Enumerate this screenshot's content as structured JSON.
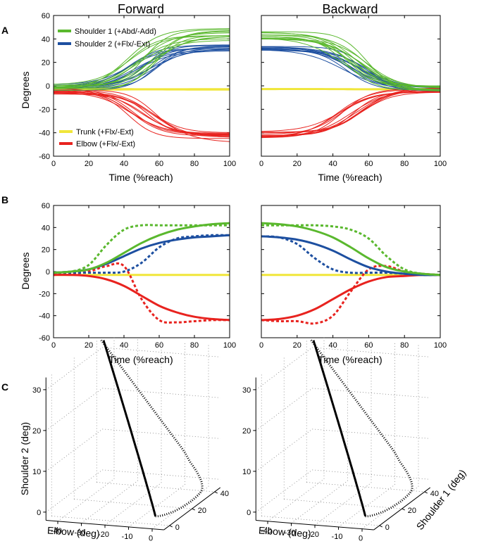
{
  "colors": {
    "shoulder1": "#5ab82e",
    "shoulder2": "#1d4fa0",
    "trunk": "#f0e63a",
    "elbow": "#e8231f",
    "black": "#000000",
    "grid": "#808080"
  },
  "column_titles": [
    "Forward",
    "Backward"
  ],
  "panel_labels": [
    "A",
    "B",
    "C"
  ],
  "chart_data": [
    {
      "id": "panel-A",
      "type": "line",
      "subplots": [
        "Forward",
        "Backward"
      ],
      "xlabel": "Time (%reach)",
      "ylabel": "Degrees",
      "xlim": [
        0,
        100
      ],
      "ylim": [
        -60,
        60
      ],
      "xticks": [
        0,
        20,
        40,
        60,
        80,
        100
      ],
      "yticks": [
        -60,
        -40,
        -20,
        0,
        20,
        40,
        60
      ],
      "trials_per_series": 12,
      "legend": [
        {
          "key": "shoulder1",
          "label": "Shoulder 1 (+Abd/-Add)",
          "placement": "top-left"
        },
        {
          "key": "shoulder2",
          "label": "Shoulder 2 (+Flx/-Ext)",
          "placement": "top-left"
        },
        {
          "key": "trunk",
          "label": "Trunk (+Flx/-Ext)",
          "placement": "bottom-left"
        },
        {
          "key": "elbow",
          "label": "Elbow (+Flx/-Ext)",
          "placement": "bottom-left"
        }
      ],
      "series": [
        {
          "key": "shoulder1",
          "name": "Shoulder 1",
          "start": -2,
          "end": 43,
          "spread_start": 3,
          "spread_end": 6
        },
        {
          "key": "shoulder2",
          "name": "Shoulder 2",
          "start": -2,
          "end": 32,
          "spread_start": 3,
          "spread_end": 3
        },
        {
          "key": "trunk",
          "name": "Trunk",
          "start": -3,
          "end": -3,
          "spread_start": 0.5,
          "spread_end": 0.5
        },
        {
          "key": "elbow",
          "name": "Elbow",
          "start": -4,
          "end": -44,
          "spread_start": 3,
          "spread_end": 5
        }
      ]
    },
    {
      "id": "panel-B",
      "type": "line",
      "subplots": [
        "Forward",
        "Backward"
      ],
      "xlabel": "Time (%reach)",
      "ylabel": "Degrees",
      "xlim": [
        0,
        100
      ],
      "ylim": [
        -60,
        60
      ],
      "xticks": [
        0,
        20,
        40,
        60,
        80,
        100
      ],
      "yticks": [
        -60,
        -40,
        -20,
        0,
        20,
        40,
        60
      ],
      "line_styles": [
        "solid",
        "dotted"
      ],
      "forward": {
        "x": [
          0,
          10,
          20,
          30,
          40,
          50,
          60,
          70,
          80,
          90,
          100
        ],
        "series": [
          {
            "key": "shoulder1",
            "style": "solid",
            "values": [
              -1,
              0,
              2,
              8,
              17,
              26,
              33,
              38,
              41,
              43,
              44
            ]
          },
          {
            "key": "shoulder1",
            "style": "dotted",
            "values": [
              -1,
              0,
              6,
              24,
              38,
              42,
              42,
              42,
              42,
              42,
              42
            ]
          },
          {
            "key": "shoulder2",
            "style": "solid",
            "values": [
              -1,
              0,
              2,
              7,
              14,
              21,
              26,
              29,
              31,
              32,
              33
            ]
          },
          {
            "key": "shoulder2",
            "style": "dotted",
            "values": [
              -1,
              -1,
              -1,
              -1,
              0,
              8,
              22,
              30,
              32,
              33,
              33
            ]
          },
          {
            "key": "trunk",
            "style": "solid",
            "values": [
              -3,
              -3,
              -3,
              -3,
              -3,
              -3,
              -3,
              -3,
              -3,
              -3,
              -3
            ]
          },
          {
            "key": "elbow",
            "style": "solid",
            "values": [
              -3,
              -3,
              -4,
              -7,
              -13,
              -22,
              -31,
              -37,
              -41,
              -43,
              -44
            ]
          },
          {
            "key": "elbow",
            "style": "dotted",
            "values": [
              -3,
              -2,
              0,
              5,
              5,
              -25,
              -44,
              -46,
              -45,
              -44,
              -44
            ]
          }
        ]
      },
      "backward": {
        "x": [
          0,
          10,
          20,
          30,
          40,
          50,
          60,
          70,
          80,
          90,
          100
        ],
        "series": [
          {
            "key": "shoulder1",
            "style": "solid",
            "values": [
              44,
              43,
              41,
              37,
              31,
              22,
              12,
              4,
              0,
              -2,
              -3
            ]
          },
          {
            "key": "shoulder1",
            "style": "dotted",
            "values": [
              42,
              42,
              42,
              42,
              41,
              38,
              30,
              14,
              2,
              -2,
              -3
            ]
          },
          {
            "key": "shoulder2",
            "style": "solid",
            "values": [
              32,
              31,
              29,
              25,
              19,
              11,
              4,
              0,
              -2,
              -3,
              -3
            ]
          },
          {
            "key": "shoulder2",
            "style": "dotted",
            "values": [
              32,
              31,
              25,
              12,
              2,
              -1,
              -1,
              -1,
              -2,
              -3,
              -3
            ]
          },
          {
            "key": "trunk",
            "style": "solid",
            "values": [
              -3,
              -3,
              -3,
              -3,
              -3,
              -3,
              -3,
              -3,
              -3,
              -3,
              -3
            ]
          },
          {
            "key": "elbow",
            "style": "solid",
            "values": [
              -44,
              -43,
              -40,
              -34,
              -25,
              -16,
              -9,
              -5,
              -4,
              -3,
              -3
            ]
          },
          {
            "key": "elbow",
            "style": "dotted",
            "values": [
              -44,
              -45,
              -45,
              -47,
              -40,
              -18,
              2,
              5,
              0,
              -2,
              -3
            ]
          }
        ]
      }
    },
    {
      "id": "panel-C",
      "type": "line3d",
      "subplots": [
        "Forward",
        "Backward"
      ],
      "xlabel": "Elbow (deg)",
      "ylabel": "Shoulder 1 (deg)",
      "zlabel": "Shoulder 2 (deg)",
      "elbow_ticks": [
        -40,
        -30,
        -20,
        -10,
        0
      ],
      "shoulder1_ticks": [
        0,
        20,
        40
      ],
      "shoulder2_ticks": [
        0,
        10,
        20,
        30
      ],
      "elbow_range": [
        -45,
        5
      ],
      "shoulder1_range": [
        -5,
        45
      ],
      "shoulder2_range": [
        -2,
        33
      ],
      "line_styles": [
        "solid",
        "dotted"
      ]
    }
  ]
}
